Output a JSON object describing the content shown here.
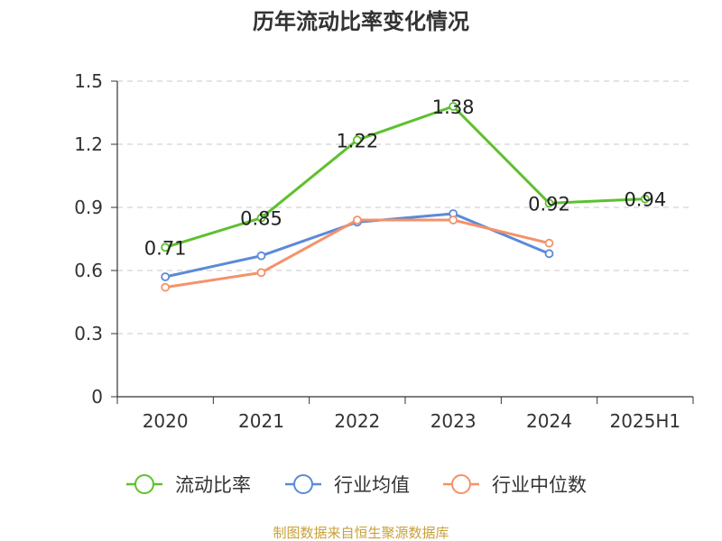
{
  "chart_data": {
    "type": "line",
    "title": "历年流动比率变化情况",
    "categories": [
      "2020",
      "2021",
      "2022",
      "2023",
      "2024",
      "2025H1"
    ],
    "ylim": [
      0,
      1.5
    ],
    "yticks": [
      "0",
      "0.3",
      "0.6",
      "0.9",
      "1.2",
      "1.5"
    ],
    "grid": true,
    "legend_position": "bottom",
    "series": [
      {
        "name": "流动比率",
        "color": "#5cc12e",
        "values": [
          0.71,
          0.85,
          1.22,
          1.38,
          0.92,
          0.94
        ],
        "labels": [
          "0.71",
          "0.85",
          "1.22",
          "1.38",
          "0.92",
          "0.94"
        ]
      },
      {
        "name": "行业均值",
        "color": "#5b8ad8",
        "values": [
          0.57,
          0.67,
          0.83,
          0.87,
          0.68,
          null
        ]
      },
      {
        "name": "行业中位数",
        "color": "#f4926a",
        "values": [
          0.52,
          0.59,
          0.84,
          0.84,
          0.73,
          null
        ]
      }
    ]
  },
  "footer": {
    "source": "制图数据来自恒生聚源数据库",
    "source_color": "#c9a13a"
  }
}
